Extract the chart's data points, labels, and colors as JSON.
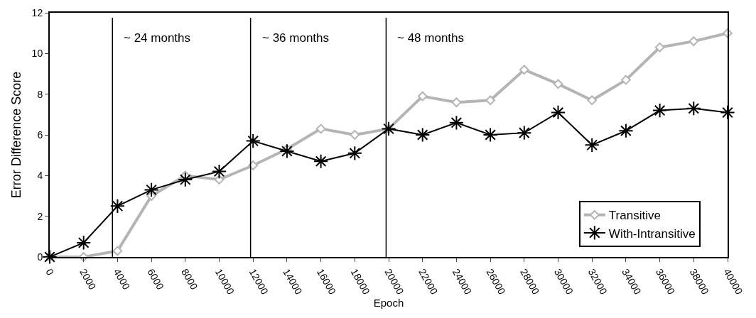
{
  "chart_data": {
    "type": "line",
    "xlabel": "Epoch",
    "ylabel": "Error Difference Score",
    "x": [
      0,
      2000,
      4000,
      6000,
      8000,
      10000,
      12000,
      14000,
      16000,
      18000,
      20000,
      22000,
      24000,
      26000,
      28000,
      30000,
      32000,
      34000,
      36000,
      38000,
      40000
    ],
    "series": [
      {
        "name": "Transitive",
        "color": "#b4b4b4",
        "marker": "diamond",
        "values": [
          0,
          0,
          0.3,
          3.0,
          4.0,
          3.8,
          4.5,
          5.3,
          6.3,
          6.0,
          6.3,
          7.9,
          7.6,
          7.7,
          9.2,
          8.5,
          7.7,
          8.7,
          10.3,
          10.6,
          11.0
        ]
      },
      {
        "name": "With-Intransitive",
        "color": "#000000",
        "marker": "cross",
        "values": [
          0,
          0.7,
          2.5,
          3.3,
          3.8,
          4.2,
          5.7,
          5.2,
          4.7,
          5.1,
          6.3,
          6.0,
          6.6,
          6.0,
          6.1,
          7.1,
          5.5,
          6.2,
          7.2,
          7.3,
          7.1
        ]
      }
    ],
    "xlim": [
      0,
      40000
    ],
    "xticks": [
      0,
      2000,
      4000,
      6000,
      8000,
      10000,
      12000,
      14000,
      16000,
      18000,
      20000,
      22000,
      24000,
      26000,
      28000,
      30000,
      32000,
      34000,
      36000,
      38000,
      40000
    ],
    "ylim": [
      0,
      12
    ],
    "yticks": [
      0,
      2,
      4,
      6,
      8,
      10,
      12
    ],
    "ref_lines": [
      {
        "axis": "x",
        "value": 3700,
        "label": "~ 24 months",
        "color": "#000000"
      },
      {
        "axis": "x",
        "value": 11850,
        "label": "~ 36 months",
        "color": "#000000"
      },
      {
        "axis": "x",
        "value": 19850,
        "label": "~ 48 months",
        "color": "#000000"
      }
    ],
    "grid": false,
    "legend": "bottom right",
    "line_style": "solid"
  }
}
